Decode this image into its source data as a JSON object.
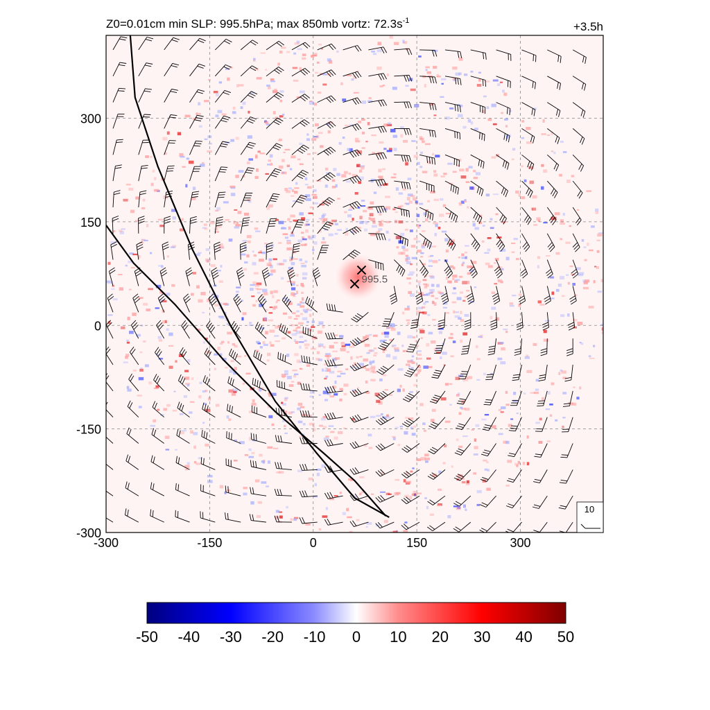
{
  "header": {
    "title_main": "Z0=0.01cm  min SLP: 995.5hPa; max 850mb vortz:  72.3s",
    "title_superscript": "-1",
    "time_label": "+3.5h"
  },
  "chart_data": {
    "type": "heatmap",
    "field": "850mb relative vorticity with wind barbs",
    "x_range": [
      -300,
      420
    ],
    "y_range": [
      -300,
      420
    ],
    "x_ticks": [
      -300,
      -150,
      0,
      150,
      300
    ],
    "y_ticks": [
      -300,
      -150,
      0,
      150,
      300
    ],
    "grid": true,
    "storm_center": {
      "x": 60,
      "y": 60,
      "marker": "x"
    },
    "vorticity_max_location": {
      "x": 70,
      "y": 80,
      "marker": "x"
    },
    "center_label": "995.5",
    "coastlines": [
      [
        [
          -265,
          420
        ],
        [
          -258,
          330
        ],
        [
          -225,
          230
        ],
        [
          -175,
          110
        ],
        [
          -120,
          0
        ],
        [
          -55,
          -110
        ],
        [
          5,
          -185
        ],
        [
          60,
          -250
        ],
        [
          110,
          -278
        ]
      ],
      [
        [
          -300,
          145
        ],
        [
          -260,
          90
        ],
        [
          -200,
          30
        ],
        [
          -130,
          -50
        ],
        [
          -55,
          -125
        ],
        [
          15,
          -185
        ],
        [
          60,
          -225
        ],
        [
          105,
          -276
        ]
      ]
    ],
    "barb_reference": {
      "label": "10"
    },
    "colorbar": {
      "ticks": [
        "-50",
        "-40",
        "-30",
        "-20",
        "-10",
        "0",
        "10",
        "20",
        "30",
        "40",
        "50"
      ],
      "range": [
        -50,
        50
      ],
      "colors": [
        "#00007f",
        "#0000ff",
        "#8c8cff",
        "#ffffff",
        "#ff8c8c",
        "#ff0000",
        "#7f0000"
      ]
    }
  }
}
